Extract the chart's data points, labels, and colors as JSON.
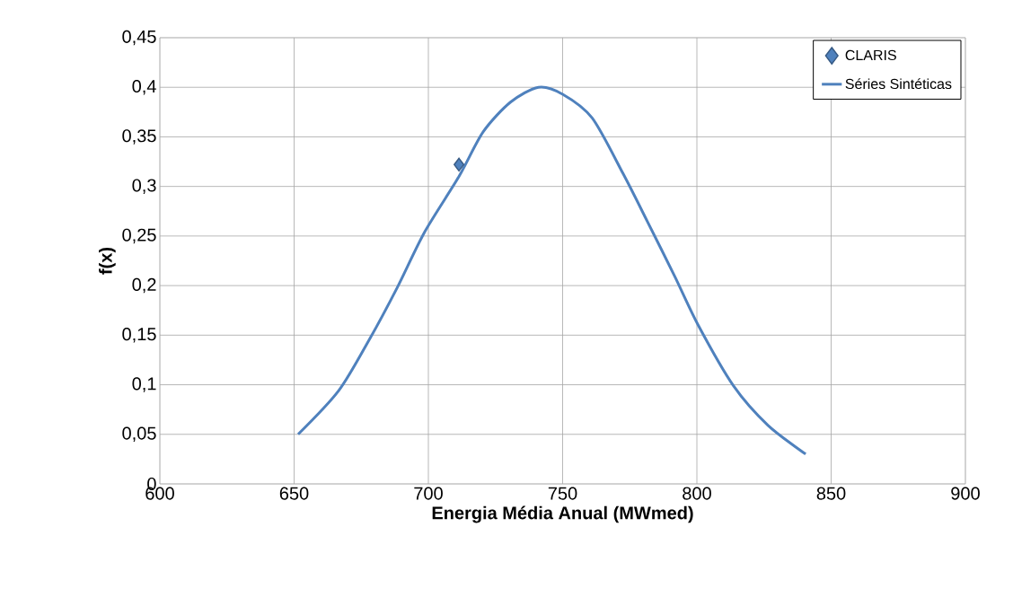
{
  "chart_data": {
    "type": "line",
    "xlabel": "Energia Média Anual (MWmed)",
    "ylabel": "f(x)",
    "xlim": [
      600,
      900
    ],
    "xticks": [
      600,
      650,
      700,
      750,
      800,
      850,
      900
    ],
    "ylim": [
      0,
      0.45
    ],
    "yticks": [
      {
        "value": 0,
        "label": "0"
      },
      {
        "value": 0.05,
        "label": "0,05"
      },
      {
        "value": 0.1,
        "label": "0,1"
      },
      {
        "value": 0.15,
        "label": "0,15"
      },
      {
        "value": 0.2,
        "label": "0,2"
      },
      {
        "value": 0.25,
        "label": "0,25"
      },
      {
        "value": 0.3,
        "label": "0,3"
      },
      {
        "value": 0.35,
        "label": "0,35"
      },
      {
        "value": 0.4,
        "label": "0,4"
      },
      {
        "value": 0.45,
        "label": "0,45"
      }
    ],
    "grid": true,
    "legend": "top right",
    "series": [
      {
        "name": "CLARIS",
        "type": "scatter",
        "marker": "diamond",
        "color": "#4f81bd",
        "x": [
          711.4
        ],
        "values": [
          0.322
        ]
      },
      {
        "name": "Séries Sintéticas",
        "color": "#4f81bd",
        "x": [
          651.5,
          666.6,
          678.1,
          688.4,
          698.6,
          711.4,
          720.4,
          730.6,
          741,
          750,
          761,
          772.5,
          781.5,
          791.8,
          800.5,
          813.6,
          826.5,
          840.5
        ],
        "values": [
          0.05,
          0.094,
          0.146,
          0.198,
          0.254,
          0.31,
          0.355,
          0.385,
          0.4,
          0.393,
          0.369,
          0.313,
          0.265,
          0.209,
          0.16,
          0.099,
          0.059,
          0.03
        ]
      }
    ]
  }
}
